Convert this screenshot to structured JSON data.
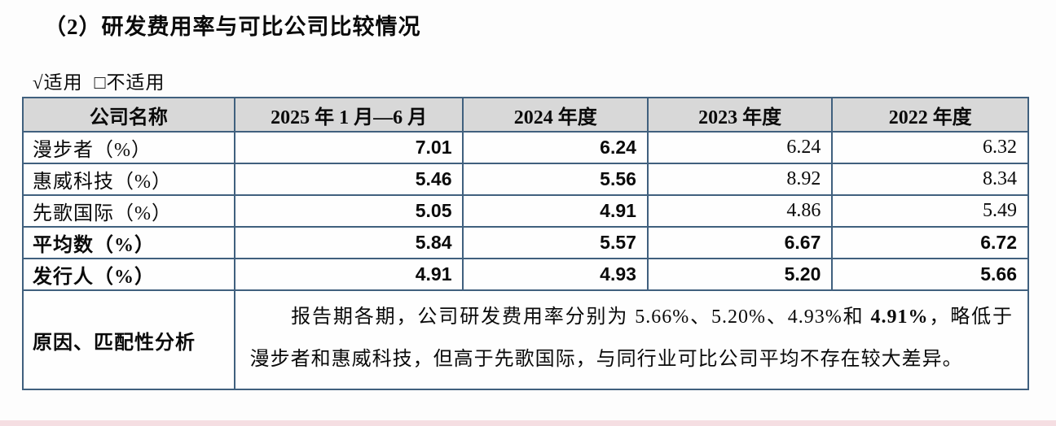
{
  "page": {
    "title": "（2）研发费用率与可比公司比较情况",
    "applicable_option": "√适用",
    "not_applicable_option": "□不适用"
  },
  "table": {
    "headers": [
      "公司名称",
      "2025 年 1 月—6 月",
      "2024 年度",
      "2023 年度",
      "2022 年度"
    ],
    "rows": [
      {
        "label": "漫步者（%）",
        "values": [
          "7.01",
          "6.24",
          "6.24",
          "6.32"
        ]
      },
      {
        "label": "惠威科技（%）",
        "values": [
          "5.46",
          "5.56",
          "8.92",
          "8.34"
        ]
      },
      {
        "label": "先歌国际（%）",
        "values": [
          "5.05",
          "4.91",
          "4.86",
          "5.49"
        ]
      },
      {
        "label": "平均数（%）",
        "values": [
          "5.84",
          "5.57",
          "6.67",
          "6.72"
        ]
      },
      {
        "label": "发行人（%）",
        "values": [
          "4.91",
          "4.93",
          "5.20",
          "5.66"
        ]
      }
    ],
    "analysis": {
      "label": "原因、匹配性分析",
      "text_before": "报告期各期，公司研发费用率分别为 5.66%、5.20%、4.93%和 ",
      "text_bold": "4.91%",
      "text_after": "，略低于漫步者和惠威科技，但高于先歌国际，与同行业可比公司平均不存在较大差异。"
    }
  },
  "colors": {
    "table_border": "#40607e",
    "header_bg": "#d8d8d8",
    "bottom_strip": "#f5dee2"
  }
}
